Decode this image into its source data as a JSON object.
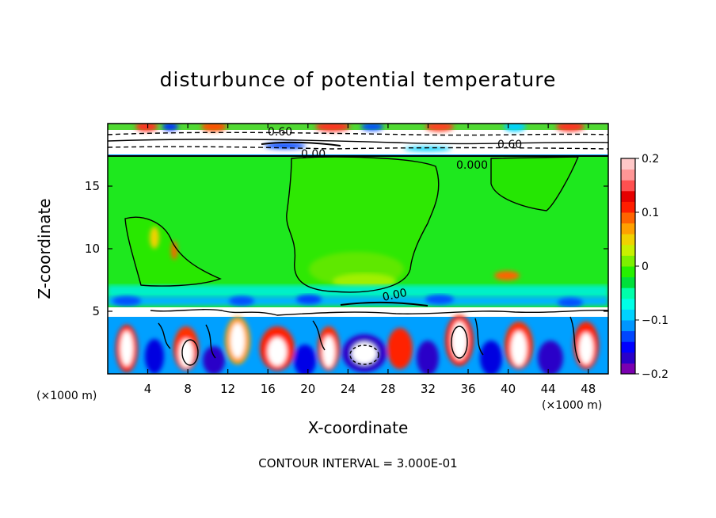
{
  "chart_data": {
    "type": "heatmap",
    "title": "disturbunce of potential temperature",
    "xlabel": "X-coordinate",
    "ylabel": "Z-coordinate",
    "x_unit": "(×1000 m)",
    "y_unit": "(×1000 m)",
    "xlim": [
      0,
      50
    ],
    "ylim": [
      0,
      20
    ],
    "x_ticks": [
      4,
      8,
      12,
      16,
      20,
      24,
      28,
      32,
      36,
      40,
      44,
      48
    ],
    "y_ticks": [
      5,
      10,
      15
    ],
    "colorbar": {
      "range": [
        -0.2,
        0.2
      ],
      "tick_labels": [
        "0.2",
        "0.1",
        "0",
        "−0.1",
        "−0.2"
      ],
      "colors": [
        "#7a00b0",
        "#2a00c8",
        "#0000ff",
        "#0046ff",
        "#0096ff",
        "#00d2ff",
        "#00ffe6",
        "#00ffaa",
        "#00e03a",
        "#26f000",
        "#7df000",
        "#c8f000",
        "#f0d200",
        "#ffa000",
        "#ff6400",
        "#ff1e00",
        "#e60000",
        "#ff5050",
        "#ff9696",
        "#ffc8c8"
      ]
    },
    "contour_labels": [
      "0.60",
      "0.00",
      "0.60",
      "0.000",
      "0.00"
    ],
    "contour_interval": "CONTOUR INTERVAL = 3.000E-01"
  }
}
